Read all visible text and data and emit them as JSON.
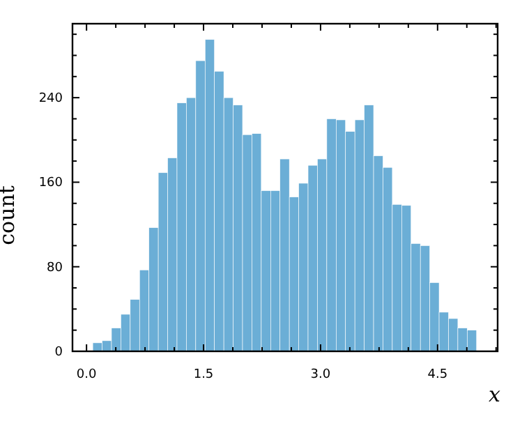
{
  "chart_data": {
    "type": "histogram",
    "xlabel": "x",
    "ylabel": "count",
    "color": "#6baed6",
    "bins": [
      0.08,
      0.2,
      0.32,
      0.44,
      0.56,
      0.68,
      0.8,
      0.92,
      1.04,
      1.16,
      1.28,
      1.4,
      1.52,
      1.64,
      1.76,
      1.88,
      2.0,
      2.12,
      2.24,
      2.36,
      2.48,
      2.6,
      2.72,
      2.84,
      2.96,
      3.08,
      3.2,
      3.32,
      3.44,
      3.56,
      3.68,
      3.8,
      3.92,
      4.04,
      4.16,
      4.28,
      4.4,
      4.52,
      4.64,
      4.76,
      4.88,
      5.0
    ],
    "values": [
      8,
      10,
      22,
      35,
      49,
      77,
      117,
      169,
      183,
      235,
      240,
      275,
      295,
      265,
      240,
      233,
      205,
      206,
      152,
      152,
      182,
      146,
      159,
      176,
      182,
      220,
      219,
      208,
      219,
      233,
      185,
      174,
      139,
      138,
      102,
      100,
      65,
      37,
      31,
      22,
      20
    ],
    "xlim": [
      -0.18,
      5.27
    ],
    "ylim": [
      0,
      310
    ],
    "xticks": [
      {
        "value": 0,
        "label": "0.0"
      },
      {
        "value": 0.375,
        "label": null
      },
      {
        "value": 0.75,
        "label": null
      },
      {
        "value": 1.125,
        "label": null
      },
      1.5,
      {
        "value": 1.875,
        "label": null
      },
      {
        "value": 2.25,
        "label": null
      },
      {
        "value": 2.625,
        "label": null
      },
      {
        "value": 3,
        "label": "3.0"
      },
      {
        "value": 3.375,
        "label": null
      },
      {
        "value": 3.75,
        "label": null
      },
      {
        "value": 4.125,
        "label": null
      },
      4.5,
      {
        "value": 4.875,
        "label": null
      },
      {
        "value": 5.25,
        "label": null
      }
    ],
    "yticks": [
      0,
      {
        "value": 20,
        "label": null
      },
      {
        "value": 40,
        "label": null
      },
      {
        "value": 60,
        "label": null
      },
      80,
      {
        "value": 100,
        "label": null
      },
      {
        "value": 120,
        "label": null
      },
      {
        "value": 140,
        "label": null
      },
      160,
      {
        "value": 180,
        "label": null
      },
      {
        "value": 200,
        "label": null
      },
      {
        "value": 220,
        "label": null
      },
      240,
      {
        "value": 260,
        "label": null
      },
      {
        "value": 280,
        "label": null
      },
      {
        "value": 300,
        "label": null
      }
    ]
  }
}
